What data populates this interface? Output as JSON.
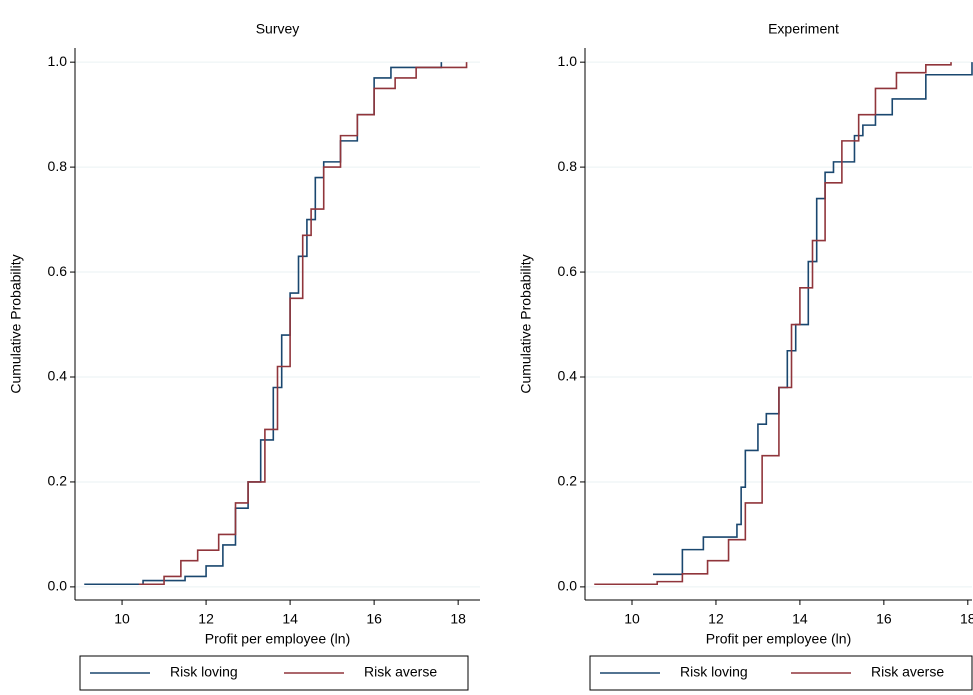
{
  "chart_data": [
    {
      "type": "step",
      "title": "Survey",
      "x_label": "Profit per employee (ln)",
      "y_label": "Cumulative Probability",
      "xlim": [
        8.88,
        18.52
      ],
      "ylim": [
        -0.025,
        1.027
      ],
      "xticks": [
        10,
        12,
        14,
        16,
        18
      ],
      "yticks": [
        {
          "value": 0,
          "label": "0.0"
        },
        {
          "value": 0.2,
          "label": "0.2"
        },
        {
          "value": 0.4,
          "label": "0.4"
        },
        {
          "value": 0.6,
          "label": "0.6"
        },
        {
          "value": 0.8,
          "label": "0.8"
        },
        {
          "value": 1,
          "label": "1.0"
        }
      ],
      "grid": true,
      "series": [
        {
          "name": "Risk loving",
          "color": "#1a476f",
          "x": [
            9.1,
            10.5,
            11.5,
            12,
            12.4,
            12.7,
            13,
            13.3,
            13.6,
            13.8,
            14,
            14.2,
            14.4,
            14.6,
            14.8,
            15.2,
            15.6,
            16,
            16.4,
            17.6
          ],
          "values": [
            0.005,
            0.012,
            0.02,
            0.04,
            0.08,
            0.15,
            0.2,
            0.28,
            0.38,
            0.48,
            0.56,
            0.63,
            0.7,
            0.78,
            0.81,
            0.85,
            0.9,
            0.97,
            0.99,
            1.0
          ]
        },
        {
          "name": "Risk averse",
          "color": "#90353b",
          "x": [
            10.4,
            11,
            11.4,
            11.8,
            12.3,
            12.7,
            13,
            13.4,
            13.7,
            14,
            14.3,
            14.5,
            14.8,
            15.2,
            15.6,
            16,
            16.5,
            17,
            18.2
          ],
          "values": [
            0.005,
            0.02,
            0.05,
            0.07,
            0.1,
            0.16,
            0.2,
            0.3,
            0.42,
            0.55,
            0.67,
            0.72,
            0.8,
            0.86,
            0.9,
            0.95,
            0.97,
            0.99,
            1.0
          ]
        }
      ]
    },
    {
      "type": "step",
      "title": "Experiment",
      "x_label": "Profit per employee (ln)",
      "y_label": "Cumulative Probability",
      "xlim": [
        8.88,
        18.1
      ],
      "ylim": [
        -0.025,
        1.027
      ],
      "xticks": [
        10,
        12,
        14,
        16,
        18
      ],
      "yticks": [
        {
          "value": 0,
          "label": "0.0"
        },
        {
          "value": 0.2,
          "label": "0.2"
        },
        {
          "value": 0.4,
          "label": "0.4"
        },
        {
          "value": 0.6,
          "label": "0.6"
        },
        {
          "value": 0.8,
          "label": "0.8"
        },
        {
          "value": 1,
          "label": "1.0"
        }
      ],
      "grid": true,
      "series": [
        {
          "name": "Risk loving",
          "color": "#1a476f",
          "x": [
            10.5,
            11.2,
            11.7,
            12.5,
            12.6,
            12.7,
            13,
            13.2,
            13.5,
            13.7,
            13.9,
            14.2,
            14.4,
            14.6,
            14.8,
            15.3,
            15.5,
            15.8,
            16.2,
            17,
            18.1
          ],
          "values": [
            0.024,
            0.071,
            0.095,
            0.119,
            0.19,
            0.26,
            0.31,
            0.33,
            0.38,
            0.45,
            0.5,
            0.62,
            0.74,
            0.79,
            0.81,
            0.86,
            0.88,
            0.9,
            0.93,
            0.976,
            1.0
          ]
        },
        {
          "name": "Risk averse",
          "color": "#90353b",
          "x": [
            9.1,
            10.6,
            11.2,
            11.8,
            12.3,
            12.7,
            13.1,
            13.5,
            13.8,
            14,
            14.3,
            14.6,
            15,
            15.4,
            15.8,
            16.3,
            17,
            17.6
          ],
          "values": [
            0.005,
            0.01,
            0.025,
            0.05,
            0.09,
            0.16,
            0.25,
            0.38,
            0.5,
            0.57,
            0.66,
            0.77,
            0.85,
            0.9,
            0.95,
            0.98,
            0.995,
            1.0
          ]
        }
      ]
    }
  ]
}
